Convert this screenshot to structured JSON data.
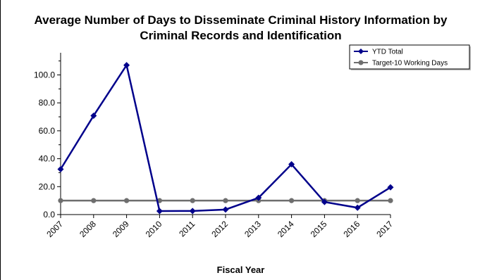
{
  "chart_data": {
    "type": "line",
    "title": "Average Number of Days to Disseminate Criminal History Information by Criminal Records and Identification",
    "title_lines": [
      "Average Number of Days to Disseminate Criminal History Information by",
      "Criminal Records and Identification"
    ],
    "xlabel": "Fiscal Year",
    "ylabel": "",
    "categories": [
      "2007",
      "2008",
      "2009",
      "2010",
      "2011",
      "2012",
      "2013",
      "2014",
      "2015",
      "2016",
      "2017"
    ],
    "ylim": [
      0,
      115
    ],
    "yticks": [
      "0.0",
      "20.0",
      "40.0",
      "60.0",
      "80.0",
      "100.0"
    ],
    "grid": false,
    "legend_position": "top-right",
    "series": [
      {
        "name": "YTD Total",
        "color": "#00008B",
        "marker": "diamond",
        "values": [
          32.5,
          70.8,
          107.0,
          2.5,
          2.6,
          3.6,
          12.0,
          36.0,
          9.0,
          4.9,
          19.5
        ]
      },
      {
        "name": "Target-10 Working Days",
        "color": "#6E6E6E",
        "marker": "circle",
        "values": [
          10,
          10,
          10,
          10,
          10,
          10,
          10,
          10,
          10,
          10,
          10
        ]
      }
    ]
  }
}
